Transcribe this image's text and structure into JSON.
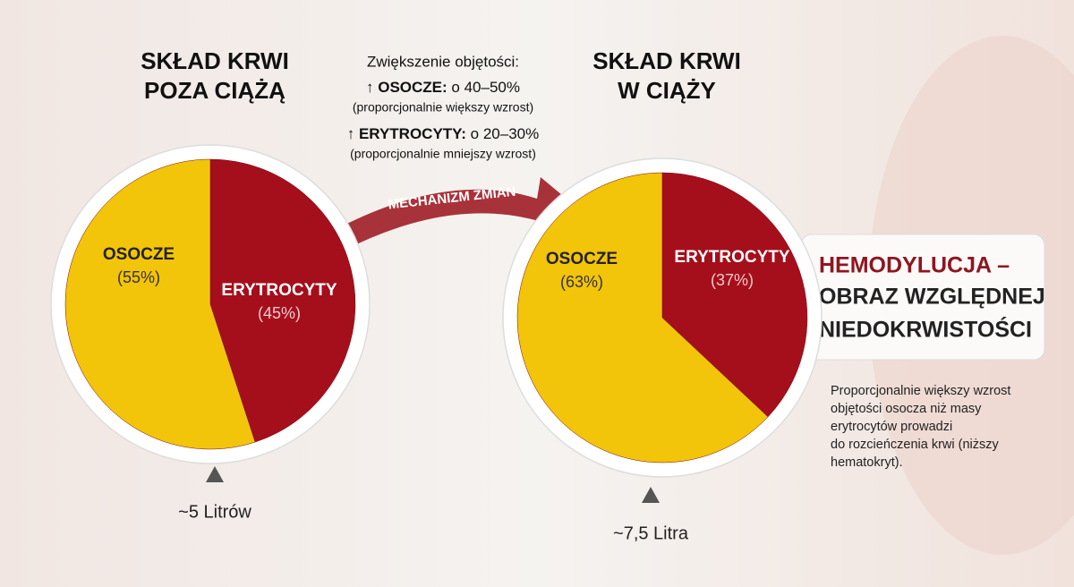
{
  "chart_data": [
    {
      "type": "pie",
      "title": [
        "SKŁAD KRWI",
        "POZA CIĄŻĄ"
      ],
      "categories": [
        "ERYTROCYTY",
        "OSOCZE"
      ],
      "values": [
        45,
        55
      ],
      "value_labels": [
        "(45%)",
        "(55%)"
      ],
      "colors": [
        "#a50f1c",
        "#f2c40a"
      ],
      "volume_label": "~5 Litrów"
    },
    {
      "type": "pie",
      "title": [
        "SKŁAD KRWI",
        "W CIĄŻY"
      ],
      "categories": [
        "ERYTROCYTY",
        "OSOCZE"
      ],
      "values": [
        37,
        63
      ],
      "value_labels": [
        "(37%)",
        "(63%)"
      ],
      "colors": [
        "#a50f1c",
        "#f2c40a"
      ],
      "volume_label": "~7,5 Litra"
    }
  ],
  "middle": {
    "heading": "Zwiększenie objętości:",
    "lines": [
      {
        "label": "↑ OSOCZE:",
        "value": "o 40–50%",
        "note": "(proporcjonalnie większy wzrost)"
      },
      {
        "label": "↑ ERYTROCYTY:",
        "value": "o 20–30%",
        "note": "(proporcjonalnie mniejszy wzrost)"
      }
    ],
    "arrow_label": "MECHANIZM ZMIAN"
  },
  "conclusion": {
    "title": [
      "HEMODYLUCJA –",
      "OBRAZ WZGLĘDNEJ",
      "NIEDOKRWISTOŚCI"
    ],
    "text": [
      "Proporcjonalnie większy wzrost",
      "objętości osocza niż masy",
      "erytrocytów prowadzi",
      "do rozcieńczenia krwi (niższy",
      "hematokryt)."
    ]
  }
}
